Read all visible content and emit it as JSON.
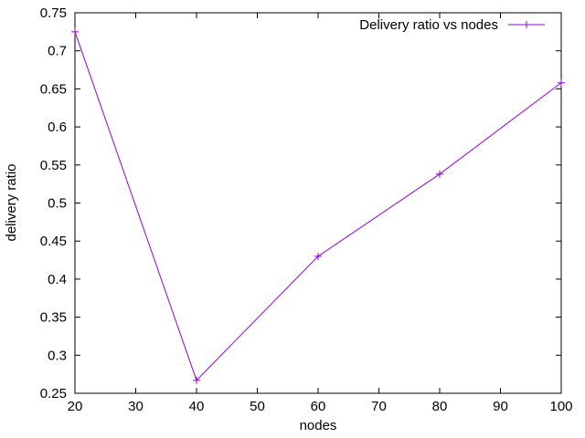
{
  "chart_data": {
    "type": "line",
    "xlabel": "nodes",
    "ylabel": "delivery ratio",
    "xlim": [
      20,
      100
    ],
    "ylim": [
      0.25,
      0.75
    ],
    "xticks": [
      "20",
      "30",
      "40",
      "50",
      "60",
      "70",
      "80",
      "90",
      "100"
    ],
    "yticks": [
      "0.25",
      "0.3",
      "0.35",
      "0.4",
      "0.45",
      "0.5",
      "0.55",
      "0.6",
      "0.65",
      "0.7",
      "0.75"
    ],
    "legend_position": "top-right",
    "grid": false,
    "series": [
      {
        "name": "Delivery ratio vs nodes",
        "color": "#9400d3",
        "marker": "plus",
        "x": [
          20,
          40,
          60,
          80,
          100
        ],
        "y": [
          0.725,
          0.267,
          0.43,
          0.538,
          0.658
        ]
      }
    ]
  }
}
